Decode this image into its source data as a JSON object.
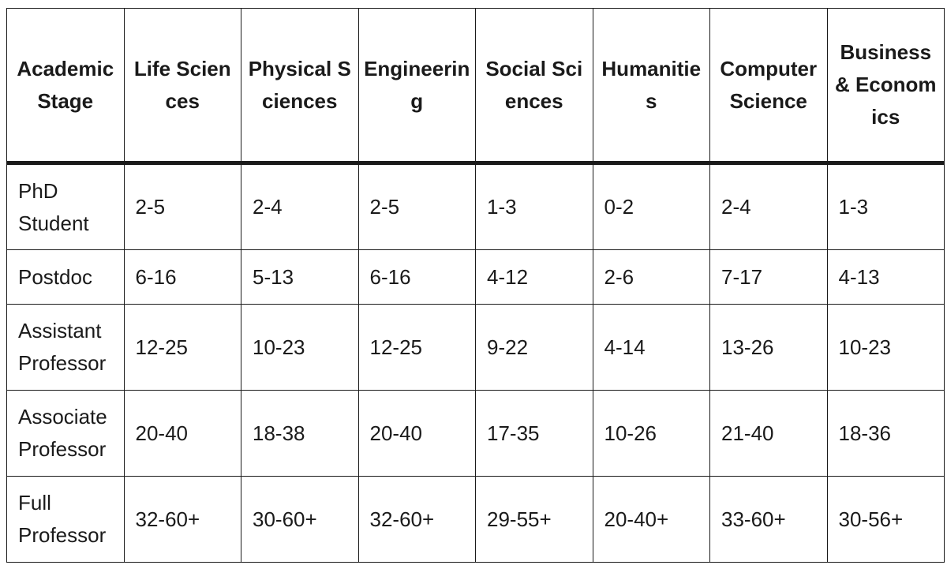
{
  "table": {
    "headers": [
      "Academic Stage",
      "Life Sciences",
      "Physical Sciences",
      "Engineering",
      "Social Sciences",
      "Humanities",
      "Computer Science",
      "Business & Economics"
    ],
    "rows": [
      [
        "PhD Student",
        "2-5",
        "2-4",
        "2-5",
        "1-3",
        "0-2",
        "2-4",
        "1-3"
      ],
      [
        "Postdoc",
        "6-16",
        "5-13",
        "6-16",
        "4-12",
        "2-6",
        "7-17",
        "4-13"
      ],
      [
        "Assistant Professor",
        "12-25",
        "10-23",
        "12-25",
        "9-22",
        "4-14",
        "13-26",
        "10-23"
      ],
      [
        "Associate Professor",
        "20-40",
        "18-38",
        "20-40",
        "17-35",
        "10-26",
        "21-40",
        "18-36"
      ],
      [
        "Full Professor",
        "32-60+",
        "30-60+",
        "32-60+",
        "29-55+",
        "20-40+",
        "33-60+",
        "30-56+"
      ]
    ]
  }
}
